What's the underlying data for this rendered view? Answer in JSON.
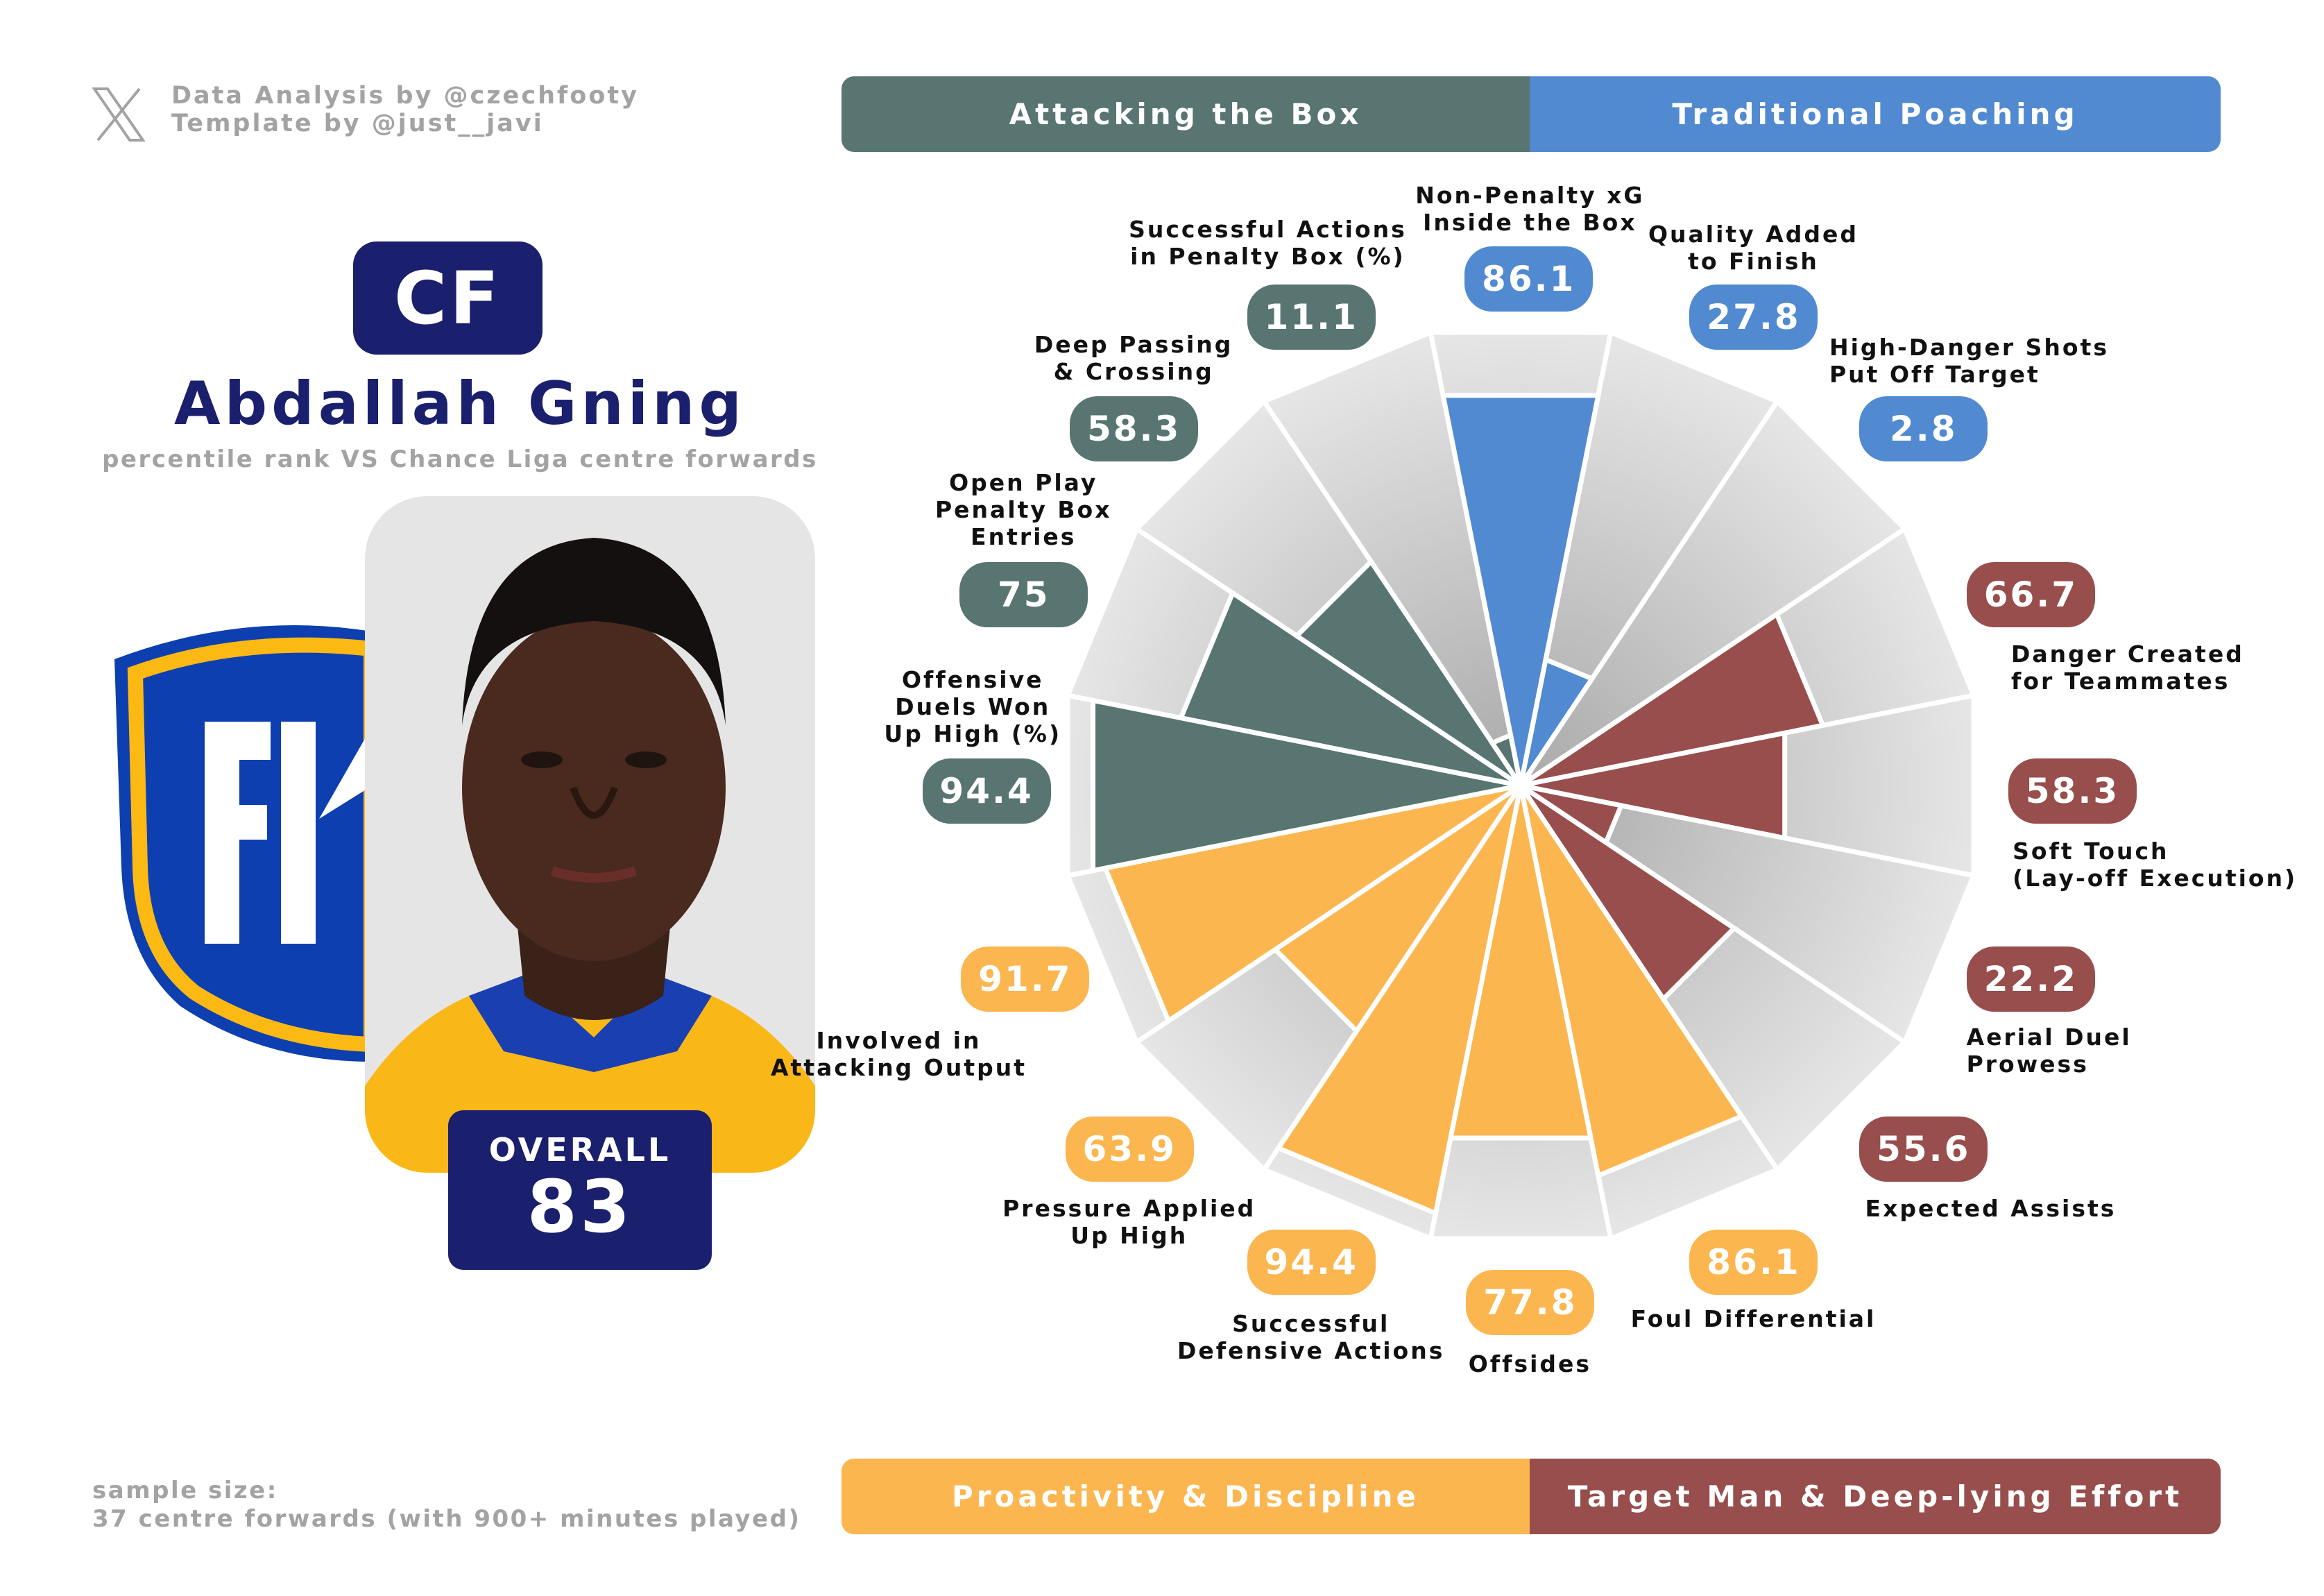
{
  "credits": {
    "line1": "Data Analysis by @czechfooty",
    "line2": "Template by @just__javi",
    "icon": "x-logo-icon"
  },
  "player": {
    "position": "CF",
    "name": "Abdallah Gning",
    "subtitle": "percentile rank VS Chance Liga centre forwards",
    "overall_label": "OVERALL",
    "overall_value": "83",
    "club_logo_text": "FK"
  },
  "sample": {
    "line1": "sample size:",
    "line2": "37 centre forwards (with 900+ minutes played)"
  },
  "colors": {
    "attacking": "#587572",
    "poaching": "#518ad0",
    "proactivity": "#fcb650",
    "target_man": "#974e4c",
    "navy": "#1a1f6e"
  },
  "chart_data": {
    "type": "polar-bar",
    "title": "Abdallah Gning percentile ranks",
    "range": [
      0,
      100
    ],
    "categories_groups": [
      {
        "name": "Attacking the Box",
        "color": "#587572"
      },
      {
        "name": "Traditional Poaching",
        "color": "#518ad0"
      },
      {
        "name": "Proactivity & Discipline",
        "color": "#fcb650"
      },
      {
        "name": "Target Man & Deep-lying Effort",
        "color": "#974e4c"
      }
    ],
    "metrics": [
      {
        "label": "Non-Penalty xG\nInside the Box",
        "value": 86.1,
        "display": "86.1",
        "group": "Traditional Poaching"
      },
      {
        "label": "Quality Added\nto Finish",
        "value": 27.8,
        "display": "27.8",
        "group": "Traditional Poaching"
      },
      {
        "label": "High-Danger Shots\nPut Off Target",
        "value": 2.8,
        "display": "2.8",
        "group": "Traditional Poaching"
      },
      {
        "label": "Danger Created\nfor Teammates",
        "value": 66.7,
        "display": "66.7",
        "group": "Target Man & Deep-lying Effort"
      },
      {
        "label": "Soft Touch\n(Lay-off Execution)",
        "value": 58.3,
        "display": "58.3",
        "group": "Target Man & Deep-lying Effort"
      },
      {
        "label": "Aerial Duel\nProwess",
        "value": 22.2,
        "display": "22.2",
        "group": "Target Man & Deep-lying Effort"
      },
      {
        "label": "Expected Assists",
        "value": 55.6,
        "display": "55.6",
        "group": "Target Man & Deep-lying Effort"
      },
      {
        "label": "Foul Differential",
        "value": 86.1,
        "display": "86.1",
        "group": "Proactivity & Discipline"
      },
      {
        "label": "Offsides",
        "value": 77.8,
        "display": "77.8",
        "group": "Proactivity & Discipline"
      },
      {
        "label": "Successful\nDefensive Actions",
        "value": 94.4,
        "display": "94.4",
        "group": "Proactivity & Discipline"
      },
      {
        "label": "Pressure Applied\nUp High",
        "value": 63.9,
        "display": "63.9",
        "group": "Proactivity & Discipline"
      },
      {
        "label": "Involved in\nAttacking Output",
        "value": 91.7,
        "display": "91.7",
        "group": "Proactivity & Discipline"
      },
      {
        "label": "Offensive\nDuels Won\nUp High (%)",
        "value": 94.4,
        "display": "94.4",
        "group": "Attacking the Box"
      },
      {
        "label": "Open Play\nPenalty Box\nEntries",
        "value": 75,
        "display": "75",
        "group": "Attacking the Box"
      },
      {
        "label": "Deep Passing\n& Crossing",
        "value": 58.3,
        "display": "58.3",
        "group": "Attacking the Box"
      },
      {
        "label": "Successful Actions\nin Penalty Box (%)",
        "value": 11.1,
        "display": "11.1",
        "group": "Attacking the Box"
      }
    ]
  }
}
